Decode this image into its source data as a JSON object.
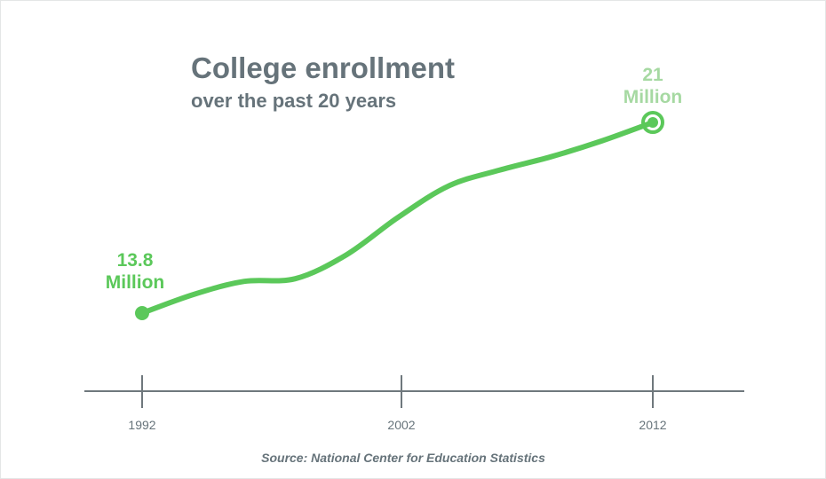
{
  "chart_data": {
    "type": "line",
    "title": "College enrollment",
    "subtitle": "over the past 20 years",
    "source": "Source: National Center for Education Statistics",
    "xlabel": "",
    "ylabel": "",
    "x_ticks": [
      "1992",
      "2002",
      "2012"
    ],
    "grid": false,
    "series": [
      {
        "x": [
          1992,
          1994,
          1996,
          1998,
          2000,
          2002,
          2004,
          2006,
          2008,
          2010,
          2012
        ],
        "y": [
          13.8,
          14.5,
          15.0,
          15.1,
          16.0,
          17.4,
          18.6,
          19.2,
          19.7,
          20.3,
          21.0
        ],
        "unit": "Million"
      }
    ],
    "annotations": [
      {
        "x": 1992,
        "value": "13.8",
        "unit": "Million"
      },
      {
        "x": 2012,
        "value": "21",
        "unit": "Million"
      }
    ],
    "colors": {
      "line": "#5bc85a",
      "end_label": "#a6d9a2",
      "text": "#66737a",
      "axis": "#6f787d"
    }
  }
}
